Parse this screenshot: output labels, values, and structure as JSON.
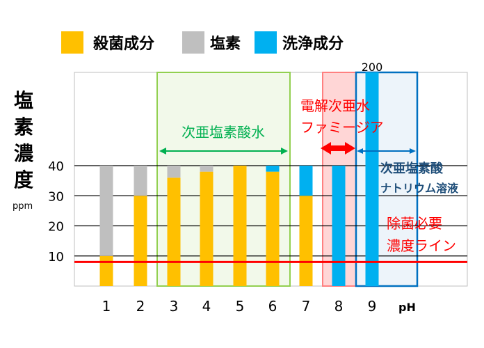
{
  "colors": {
    "sterilizing": "#FFC000",
    "chlorine": "#BFBFBF",
    "cleaning": "#00B0F0",
    "threshold": "#FF0000",
    "green_region": "#92D050",
    "pink_region": "#FF6B6B",
    "blue_region": "#0070C0",
    "green_text": "#00B050",
    "blue_text": "#1F4E79"
  },
  "chart_data": {
    "type": "bar",
    "stacked": true,
    "xlabel": "pH",
    "ylabel": "塩素濃度",
    "ylabel_unit": "ppm",
    "ylim": [
      0,
      40
    ],
    "yticks": [
      10,
      20,
      30,
      40
    ],
    "categories": [
      "1",
      "2",
      "3",
      "4",
      "5",
      "6",
      "7",
      "8",
      "9"
    ],
    "series": [
      {
        "name": "殺菌成分",
        "color_key": "sterilizing",
        "values": [
          10,
          30,
          36,
          38,
          40,
          38,
          30,
          0,
          0
        ]
      },
      {
        "name": "塩素",
        "color_key": "chlorine",
        "values": [
          30,
          10,
          4,
          2,
          0,
          0,
          0,
          0,
          0
        ]
      },
      {
        "name": "洗浄成分",
        "color_key": "cleaning",
        "values": [
          0,
          0,
          0,
          0,
          0,
          2,
          10,
          40,
          40
        ]
      }
    ],
    "overflow_label": {
      "category": "9",
      "text": "200"
    },
    "threshold_line": {
      "value": 8,
      "label_lines": [
        "除菌必要",
        "濃度ライン"
      ]
    },
    "regions": [
      {
        "name": "green",
        "from": "3",
        "to": "6",
        "label": "次亜塩素酸水"
      },
      {
        "name": "pink",
        "from": "8",
        "to": "8",
        "label_lines": [
          "電解次亜水",
          "ファミージア"
        ]
      },
      {
        "name": "blue",
        "from": "9",
        "to": "9",
        "label_lines": [
          "次亜塩素酸",
          "ナトリウム溶液"
        ]
      }
    ]
  }
}
